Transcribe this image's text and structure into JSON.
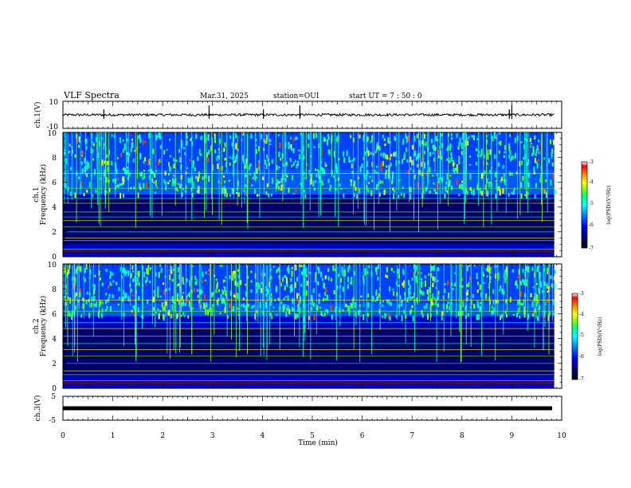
{
  "header": {
    "title": "VLF Spectra",
    "date": "Mar.31, 2025",
    "station": "station=OUI",
    "start": "start UT =  7 : 50 : 0"
  },
  "chart_data": [
    {
      "type": "line",
      "id": "ch1_waveform",
      "ylabel": "ch.1(V)",
      "ylim": [
        -10,
        10
      ],
      "yticks": [
        "10",
        "-10"
      ],
      "xlim": [
        0,
        10
      ],
      "baseline": 0,
      "notable_spikes_min": [
        0.82,
        2.93,
        4.02,
        4.75,
        8.95,
        9.0
      ]
    },
    {
      "type": "heatmap",
      "id": "ch1_spectrogram",
      "ylabel_line1": "ch.1",
      "ylabel_line2": "Frequency  (kHz)",
      "ylim": [
        0,
        10
      ],
      "yticks": [
        "0",
        "2",
        "4",
        "6",
        "8",
        "10"
      ],
      "xlim": [
        0,
        9.85
      ],
      "noise_band_khz": [
        5,
        7
      ],
      "narrowband_lines_khz": [
        0.6,
        1.3,
        1.5,
        2.0,
        2.4,
        2.9,
        3.2,
        3.6,
        4.3,
        4.7,
        5.5,
        6.7
      ],
      "colorbar": {
        "label": "log(PSD)(V²/Hz)",
        "range": [
          -7,
          -3
        ],
        "ticks": [
          "-3",
          "-4",
          "-5",
          "-6",
          "-7"
        ]
      }
    },
    {
      "type": "heatmap",
      "id": "ch2_spectrogram",
      "ylabel_line1": "ch.2",
      "ylabel_line2": "Frequency  (kHz)",
      "ylim": [
        0,
        10
      ],
      "yticks": [
        "0",
        "2",
        "4",
        "6",
        "8",
        "10"
      ],
      "xlim": [
        0,
        9.85
      ],
      "noise_band_khz": [
        5.8,
        6.8
      ],
      "narrowband_lines_khz": [
        0.6,
        1.1,
        1.4,
        2.0,
        2.6,
        3.1,
        3.6,
        4.2,
        4.8,
        5.3,
        6.2,
        7.1
      ],
      "colorbar": {
        "label": "log(PSD)(V²/Hz)",
        "range": [
          -7,
          -3
        ],
        "ticks": [
          "-3",
          "-4",
          "-5",
          "-6",
          "-7"
        ]
      }
    },
    {
      "type": "line",
      "id": "ch3_waveform",
      "ylabel": "ch.3(V)",
      "ylim": [
        -5,
        5
      ],
      "yticks": [
        "5",
        "-5"
      ],
      "xlim": [
        0,
        9.85
      ],
      "baseline": -1
    }
  ],
  "xaxis": {
    "label": "Time  (min)",
    "range": [
      0,
      10
    ],
    "ticks": [
      "0",
      "1",
      "2",
      "3",
      "4",
      "5",
      "6",
      "7",
      "8",
      "9",
      "10"
    ]
  },
  "colormap": [
    "#000000",
    "#00007f",
    "#0000ff",
    "#0080ff",
    "#00ffff",
    "#00ff80",
    "#80ff00",
    "#ffff00",
    "#ff8000",
    "#ff0000",
    "#ffffff"
  ]
}
